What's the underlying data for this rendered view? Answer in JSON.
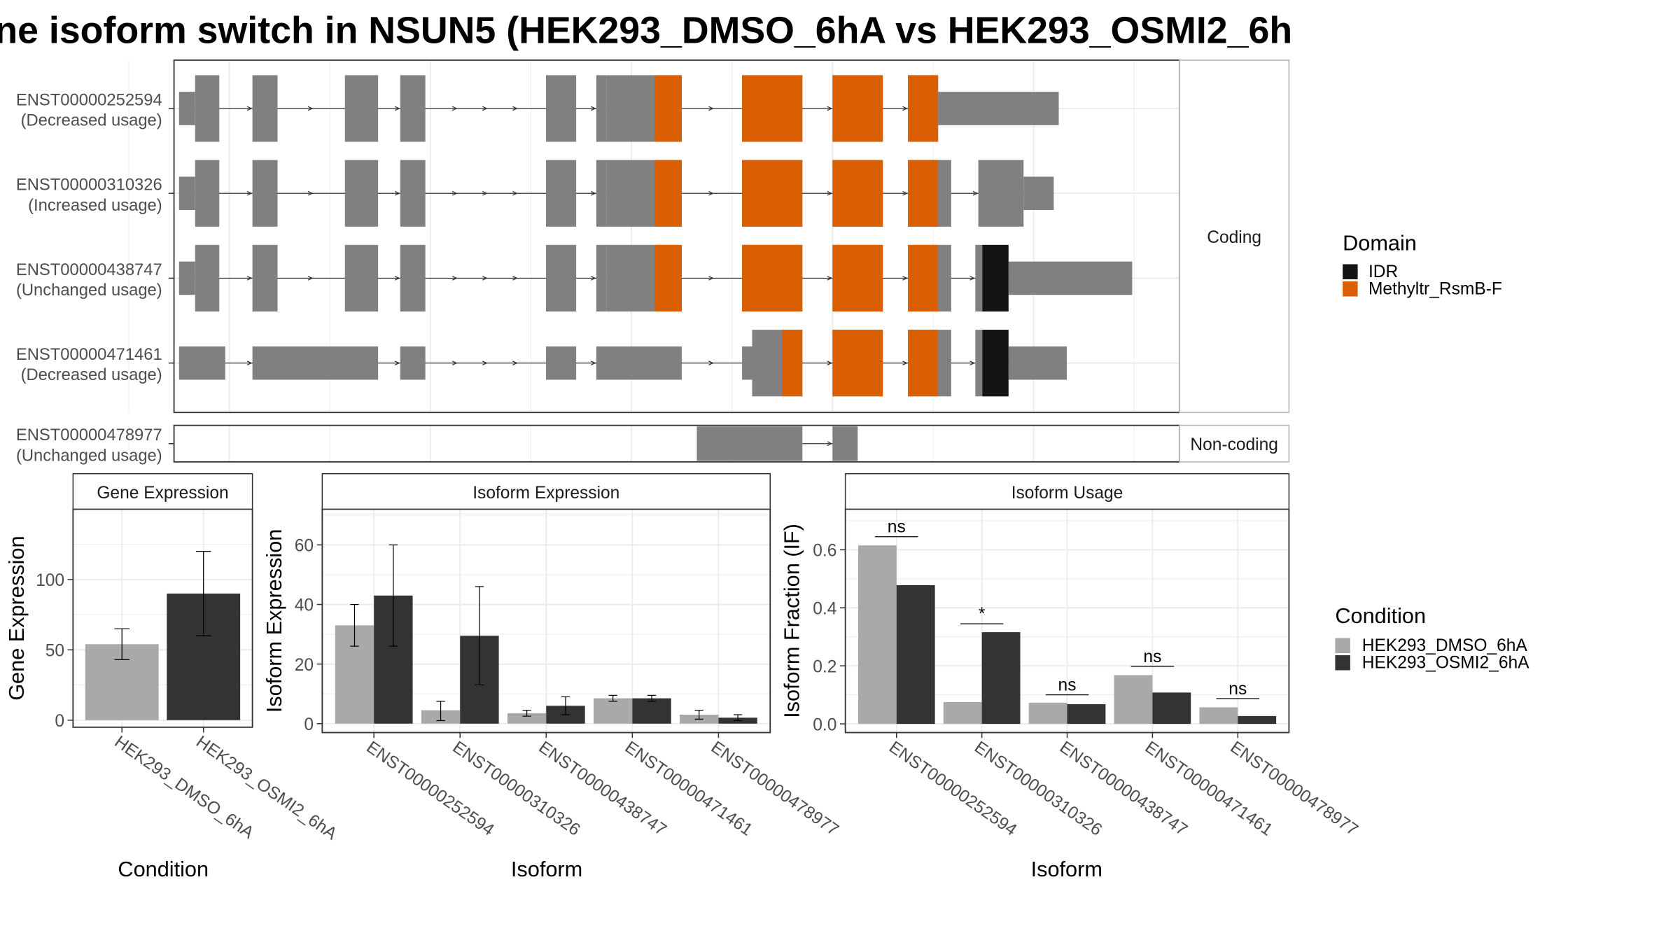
{
  "title": "ne isoform switch in NSUN5 (HEK293_DMSO_6hA vs HEK293_OSMI2_6h",
  "colors": {
    "exon": "#808080",
    "domain_IDR": "#141414",
    "domain_Methyltr": "#D95F02",
    "cond_dmso": "#A9A9A9",
    "cond_osmi": "#333333",
    "panel_border": "#333333",
    "strip_border": "#B3B3B3",
    "grid": "#EBEBEB"
  },
  "transcript_structure": {
    "coding_label": "Coding",
    "noncoding_label": "Non-coding",
    "coord_range": [
      0,
      1000
    ],
    "transcripts": [
      {
        "id": "ENST00000252594",
        "usage": "(Decreased usage)",
        "group": "coding",
        "exons": [
          {
            "start": 5,
            "end": 21,
            "kind": "utr"
          },
          {
            "start": 21,
            "end": 45,
            "kind": "cds"
          },
          {
            "start": 78,
            "end": 103,
            "kind": "cds"
          },
          {
            "start": 170,
            "end": 203,
            "kind": "cds"
          },
          {
            "start": 225,
            "end": 250,
            "kind": "cds"
          },
          {
            "start": 370,
            "end": 400,
            "kind": "cds"
          },
          {
            "start": 420,
            "end": 430,
            "kind": "cds"
          },
          {
            "start": 430,
            "end": 505,
            "kind": "cds"
          },
          {
            "start": 565,
            "end": 625,
            "kind": "cds"
          },
          {
            "start": 655,
            "end": 705,
            "kind": "cds"
          },
          {
            "start": 730,
            "end": 760,
            "kind": "cds"
          },
          {
            "start": 760,
            "end": 880,
            "kind": "utr"
          }
        ],
        "domains": [
          {
            "start": 478,
            "end": 505,
            "name": "Methyltr_RsmB-F"
          },
          {
            "start": 565,
            "end": 625,
            "name": "Methyltr_RsmB-F"
          },
          {
            "start": 655,
            "end": 705,
            "name": "Methyltr_RsmB-F"
          },
          {
            "start": 730,
            "end": 760,
            "name": "Methyltr_RsmB-F"
          }
        ]
      },
      {
        "id": "ENST00000310326",
        "usage": "(Increased usage)",
        "group": "coding",
        "exons": [
          {
            "start": 5,
            "end": 21,
            "kind": "utr"
          },
          {
            "start": 21,
            "end": 45,
            "kind": "cds"
          },
          {
            "start": 78,
            "end": 103,
            "kind": "cds"
          },
          {
            "start": 170,
            "end": 203,
            "kind": "cds"
          },
          {
            "start": 225,
            "end": 250,
            "kind": "cds"
          },
          {
            "start": 370,
            "end": 400,
            "kind": "cds"
          },
          {
            "start": 420,
            "end": 430,
            "kind": "cds"
          },
          {
            "start": 430,
            "end": 505,
            "kind": "cds"
          },
          {
            "start": 565,
            "end": 625,
            "kind": "cds"
          },
          {
            "start": 655,
            "end": 705,
            "kind": "cds"
          },
          {
            "start": 730,
            "end": 773,
            "kind": "cds"
          },
          {
            "start": 800,
            "end": 845,
            "kind": "cds"
          },
          {
            "start": 845,
            "end": 875,
            "kind": "utr"
          }
        ],
        "domains": [
          {
            "start": 478,
            "end": 505,
            "name": "Methyltr_RsmB-F"
          },
          {
            "start": 565,
            "end": 625,
            "name": "Methyltr_RsmB-F"
          },
          {
            "start": 655,
            "end": 705,
            "name": "Methyltr_RsmB-F"
          },
          {
            "start": 730,
            "end": 760,
            "name": "Methyltr_RsmB-F"
          }
        ]
      },
      {
        "id": "ENST00000438747",
        "usage": "(Unchanged usage)",
        "group": "coding",
        "exons": [
          {
            "start": 5,
            "end": 21,
            "kind": "utr"
          },
          {
            "start": 21,
            "end": 45,
            "kind": "cds"
          },
          {
            "start": 78,
            "end": 103,
            "kind": "cds"
          },
          {
            "start": 170,
            "end": 203,
            "kind": "cds"
          },
          {
            "start": 225,
            "end": 250,
            "kind": "cds"
          },
          {
            "start": 370,
            "end": 400,
            "kind": "cds"
          },
          {
            "start": 420,
            "end": 430,
            "kind": "cds"
          },
          {
            "start": 430,
            "end": 505,
            "kind": "cds"
          },
          {
            "start": 565,
            "end": 625,
            "kind": "cds"
          },
          {
            "start": 655,
            "end": 705,
            "kind": "cds"
          },
          {
            "start": 730,
            "end": 773,
            "kind": "cds"
          },
          {
            "start": 797,
            "end": 830,
            "kind": "cds"
          },
          {
            "start": 830,
            "end": 953,
            "kind": "utr"
          }
        ],
        "domains": [
          {
            "start": 478,
            "end": 505,
            "name": "Methyltr_RsmB-F"
          },
          {
            "start": 565,
            "end": 625,
            "name": "Methyltr_RsmB-F"
          },
          {
            "start": 655,
            "end": 705,
            "name": "Methyltr_RsmB-F"
          },
          {
            "start": 730,
            "end": 760,
            "name": "Methyltr_RsmB-F"
          },
          {
            "start": 804,
            "end": 830,
            "name": "IDR"
          }
        ]
      },
      {
        "id": "ENST00000471461",
        "usage": "(Decreased usage)",
        "group": "coding",
        "exons": [
          {
            "start": 5,
            "end": 51,
            "kind": "utr"
          },
          {
            "start": 78,
            "end": 203,
            "kind": "utr"
          },
          {
            "start": 225,
            "end": 250,
            "kind": "utr"
          },
          {
            "start": 370,
            "end": 400,
            "kind": "utr"
          },
          {
            "start": 420,
            "end": 505,
            "kind": "utr"
          },
          {
            "start": 565,
            "end": 575,
            "kind": "utr"
          },
          {
            "start": 575,
            "end": 625,
            "kind": "cds"
          },
          {
            "start": 655,
            "end": 705,
            "kind": "cds"
          },
          {
            "start": 730,
            "end": 773,
            "kind": "cds"
          },
          {
            "start": 797,
            "end": 830,
            "kind": "cds"
          },
          {
            "start": 830,
            "end": 888,
            "kind": "utr"
          }
        ],
        "domains": [
          {
            "start": 605,
            "end": 625,
            "name": "Methyltr_RsmB-F"
          },
          {
            "start": 655,
            "end": 705,
            "name": "Methyltr_RsmB-F"
          },
          {
            "start": 730,
            "end": 760,
            "name": "Methyltr_RsmB-F"
          },
          {
            "start": 804,
            "end": 830,
            "name": "IDR"
          }
        ]
      },
      {
        "id": "ENST00000478977",
        "usage": "(Unchanged usage)",
        "group": "noncoding",
        "exons": [
          {
            "start": 520,
            "end": 625,
            "kind": "nc"
          },
          {
            "start": 655,
            "end": 680,
            "kind": "nc"
          }
        ],
        "domains": []
      }
    ]
  },
  "domain_legend": {
    "title": "Domain",
    "entries": [
      {
        "label": "IDR",
        "color": "#141414"
      },
      {
        "label": "Methyltr_RsmB-F",
        "color": "#D95F02"
      }
    ]
  },
  "condition_legend": {
    "title": "Condition",
    "entries": [
      {
        "label": "HEK293_DMSO_6hA",
        "color": "#A9A9A9"
      },
      {
        "label": "HEK293_OSMI2_6hA",
        "color": "#333333"
      }
    ]
  },
  "chart_data": [
    {
      "type": "bar",
      "title": "Gene Expression",
      "xlabel": "Condition",
      "ylabel": "Gene Expression",
      "ylim": [
        -5,
        150
      ],
      "yticks": [
        0,
        50,
        100
      ],
      "categories": [
        "HEK293_DMSO_6hA",
        "HEK293_OSMI2_6hA"
      ],
      "values": [
        54,
        90
      ],
      "errors": [
        [
          43,
          65
        ],
        [
          60,
          120
        ]
      ],
      "grid": true
    },
    {
      "type": "bar",
      "title": "Isoform Expression",
      "xlabel": "Isoform",
      "ylabel": "Isoform Expression",
      "ylim": [
        -3,
        72
      ],
      "yticks": [
        0,
        20,
        40,
        60
      ],
      "categories": [
        "ENST00000252594",
        "ENST00000310326",
        "ENST00000438747",
        "ENST00000471461",
        "ENST00000478977"
      ],
      "series": [
        {
          "name": "HEK293_DMSO_6hA",
          "values": [
            33,
            4.5,
            3.5,
            8.5,
            3
          ],
          "errors": [
            [
              26,
              40
            ],
            [
              1,
              7.5
            ],
            [
              2.5,
              4.5
            ],
            [
              7.5,
              9.5
            ],
            [
              1.5,
              4.5
            ]
          ]
        },
        {
          "name": "HEK293_OSMI2_6hA",
          "values": [
            43,
            29.5,
            6,
            8.5,
            2
          ],
          "errors": [
            [
              26,
              60
            ],
            [
              13,
              46
            ],
            [
              3,
              9
            ],
            [
              7.5,
              9.5
            ],
            [
              1,
              3
            ]
          ]
        }
      ],
      "grid": true
    },
    {
      "type": "bar",
      "title": "Isoform Usage",
      "xlabel": "Isoform",
      "ylabel": "Isoform Fraction (IF)",
      "ylim": [
        -0.03,
        0.74
      ],
      "yticks": [
        0.0,
        0.2,
        0.4,
        0.6
      ],
      "categories": [
        "ENST00000252594",
        "ENST00000310326",
        "ENST00000438747",
        "ENST00000471461",
        "ENST00000478977"
      ],
      "series": [
        {
          "name": "HEK293_DMSO_6hA",
          "values": [
            0.615,
            0.075,
            0.073,
            0.168,
            0.057
          ]
        },
        {
          "name": "HEK293_OSMI2_6hA",
          "values": [
            0.478,
            0.316,
            0.068,
            0.108,
            0.027
          ]
        }
      ],
      "significance": [
        {
          "label": "ns",
          "y": 0.645
        },
        {
          "label": "*",
          "y": 0.345
        },
        {
          "label": "ns",
          "y": 0.1
        },
        {
          "label": "ns",
          "y": 0.198
        },
        {
          "label": "ns",
          "y": 0.087
        }
      ],
      "grid": true
    }
  ]
}
